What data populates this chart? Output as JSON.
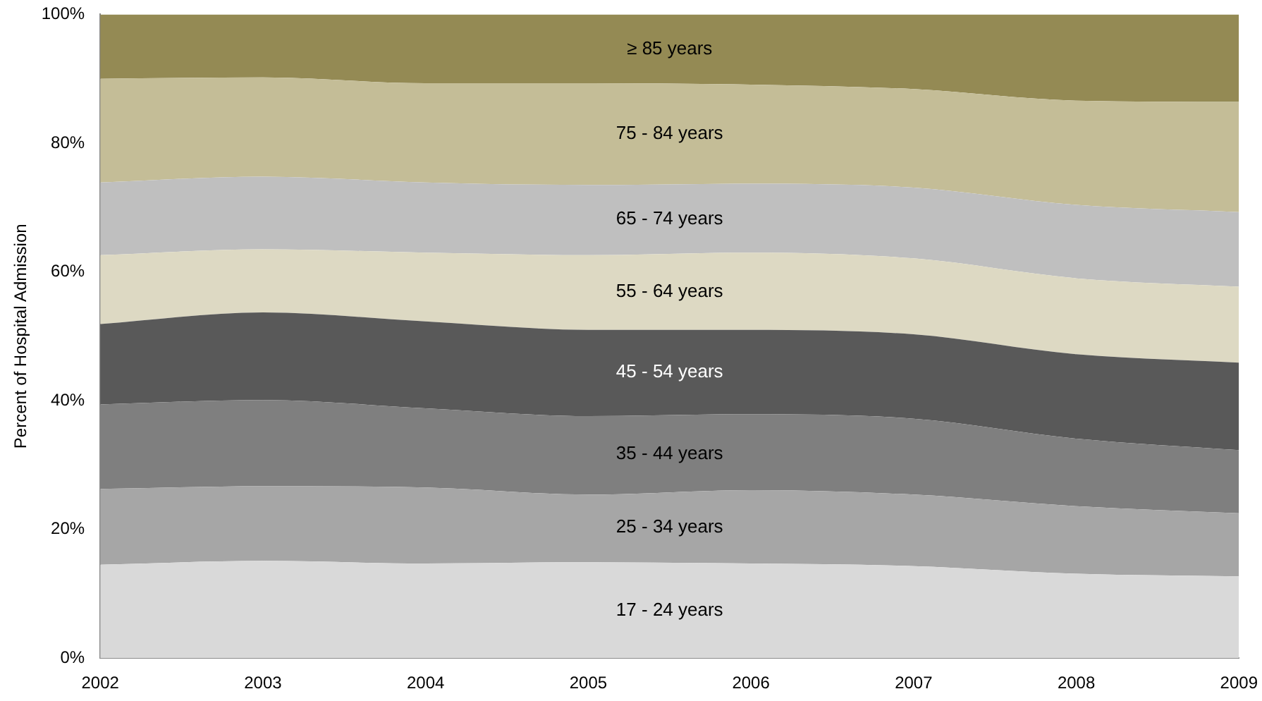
{
  "chart_data": {
    "type": "area",
    "stacked": true,
    "ylabel": "Percent of Hospital Admission",
    "categories": [
      "2002",
      "2003",
      "2004",
      "2005",
      "2006",
      "2007",
      "2008",
      "2009"
    ],
    "ylim": [
      0,
      100
    ],
    "yticks": [
      {
        "value": 0,
        "label": "0%"
      },
      {
        "value": 20,
        "label": "20%"
      },
      {
        "value": 40,
        "label": "40%"
      },
      {
        "value": 60,
        "label": "60%"
      },
      {
        "value": 80,
        "label": "80%"
      },
      {
        "value": 100,
        "label": "100%"
      }
    ],
    "grid": false,
    "legend": false,
    "series": [
      {
        "name": "17 - 24 years",
        "color": "#d9d9d9",
        "values": [
          14.5,
          15.1,
          14.7,
          14.9,
          14.7,
          14.3,
          13.1,
          12.7
        ]
      },
      {
        "name": "25 - 34 years",
        "color": "#a6a6a6",
        "values": [
          11.8,
          11.6,
          11.8,
          10.5,
          11.4,
          11.1,
          10.5,
          9.8
        ]
      },
      {
        "name": "35 - 44 years",
        "color": "#7f7f7f",
        "values": [
          13.1,
          13.4,
          12.3,
          12.2,
          11.8,
          11.8,
          10.5,
          9.8
        ]
      },
      {
        "name": "45 - 54 years",
        "color": "#595959",
        "values": [
          12.5,
          13.6,
          13.5,
          13.4,
          13.1,
          13.1,
          13.1,
          13.6
        ]
      },
      {
        "name": "55 - 64 years",
        "color": "#ddd9c3",
        "values": [
          10.7,
          9.8,
          10.7,
          11.6,
          12.0,
          11.8,
          11.8,
          11.8
        ]
      },
      {
        "name": "65 - 74 years",
        "color": "#bfbfbf",
        "values": [
          11.3,
          11.3,
          10.9,
          10.9,
          10.7,
          11.0,
          11.4,
          11.6
        ]
      },
      {
        "name": "75 - 84 years",
        "color": "#c4bd97",
        "values": [
          16.1,
          15.4,
          15.4,
          15.8,
          15.4,
          15.3,
          16.2,
          17.1
        ]
      },
      {
        "name": "≥ 85 years",
        "color": "#948a54",
        "values": [
          10.0,
          9.8,
          10.7,
          10.7,
          10.9,
          11.6,
          13.4,
          13.6
        ]
      }
    ]
  }
}
